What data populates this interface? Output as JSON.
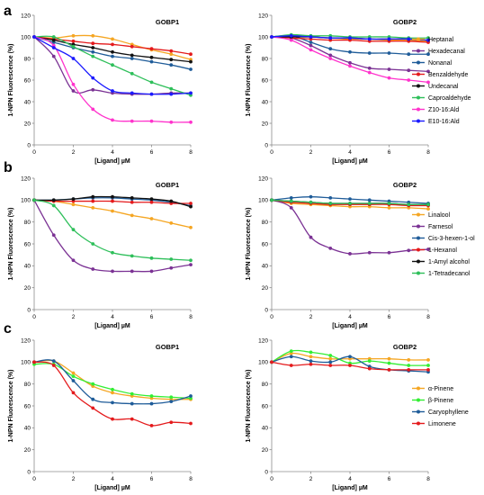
{
  "panel_labels": [
    "a",
    "b",
    "c"
  ],
  "chart_data": [
    {
      "type": "line",
      "panel": "a",
      "title": "GOBP1",
      "xlabel": "[Ligand] µM",
      "ylabel": "1-NPN Fluorescence (%)",
      "xlim": [
        0,
        8
      ],
      "ylim": [
        0,
        120
      ],
      "xticks": [
        0,
        2,
        4,
        6,
        8
      ],
      "yticks": [
        0,
        20,
        40,
        60,
        80,
        100,
        120
      ],
      "grid": false,
      "legend": "none",
      "series": [
        {
          "name": "Heptanal",
          "color": "#f5a623",
          "x": [
            0,
            1,
            2,
            3,
            4,
            5,
            6,
            7,
            8
          ],
          "y": [
            100,
            99,
            101,
            101,
            98,
            93,
            88,
            84,
            79
          ]
        },
        {
          "name": "Hexadecanal",
          "color": "#7b3294",
          "x": [
            0,
            1,
            2,
            3,
            4,
            5,
            6,
            7,
            8
          ],
          "y": [
            100,
            82,
            50,
            51,
            48,
            47,
            47,
            48,
            48
          ]
        },
        {
          "name": "Nonanal",
          "color": "#1f5c99",
          "x": [
            0,
            1,
            2,
            3,
            4,
            5,
            6,
            7,
            8
          ],
          "y": [
            100,
            95,
            90,
            86,
            82,
            80,
            77,
            74,
            70
          ]
        },
        {
          "name": "Benzaldehyde",
          "color": "#e41a1c",
          "x": [
            0,
            1,
            2,
            3,
            4,
            5,
            6,
            7,
            8
          ],
          "y": [
            100,
            98,
            96,
            94,
            93,
            91,
            89,
            87,
            84
          ]
        },
        {
          "name": "Undecanal",
          "color": "#111111",
          "x": [
            0,
            1,
            2,
            3,
            4,
            5,
            6,
            7,
            8
          ],
          "y": [
            100,
            97,
            93,
            90,
            86,
            83,
            81,
            79,
            77
          ]
        },
        {
          "name": "Caproaldehyde",
          "color": "#2ebf5a",
          "x": [
            0,
            1,
            2,
            3,
            4,
            5,
            6,
            7,
            8
          ],
          "y": [
            100,
            100,
            91,
            82,
            74,
            66,
            58,
            52,
            46
          ]
        },
        {
          "name": "Z10-16:Ald",
          "color": "#ff33cc",
          "x": [
            0,
            1,
            2,
            3,
            4,
            5,
            6,
            7,
            8
          ],
          "y": [
            100,
            92,
            56,
            33,
            23,
            22,
            22,
            21,
            21
          ]
        },
        {
          "name": "E10-16:Ald",
          "color": "#1a1aff",
          "x": [
            0,
            1,
            2,
            3,
            4,
            5,
            6,
            7,
            8
          ],
          "y": [
            100,
            90,
            80,
            62,
            50,
            48,
            47,
            47,
            48
          ]
        }
      ]
    },
    {
      "type": "line",
      "panel": "a",
      "title": "GOBP2",
      "xlabel": "[Ligand] µM",
      "ylabel": "1-NPN Fluorescence (%)",
      "xlim": [
        0,
        8
      ],
      "ylim": [
        0,
        120
      ],
      "xticks": [
        0,
        2,
        4,
        6,
        8
      ],
      "yticks": [
        0,
        20,
        40,
        60,
        80,
        100,
        120
      ],
      "grid": false,
      "legend": "right",
      "series": [
        {
          "name": "Heptanal",
          "color": "#f5a623",
          "x": [
            0,
            1,
            2,
            3,
            4,
            5,
            6,
            7,
            8
          ],
          "y": [
            100,
            101,
            100,
            99,
            98,
            98,
            97,
            97,
            96
          ]
        },
        {
          "name": "Hexadecanal",
          "color": "#7b3294",
          "x": [
            0,
            1,
            2,
            3,
            4,
            5,
            6,
            7,
            8
          ],
          "y": [
            100,
            99,
            92,
            83,
            76,
            71,
            70,
            69,
            68
          ]
        },
        {
          "name": "Nonanal",
          "color": "#1f5c99",
          "x": [
            0,
            1,
            2,
            3,
            4,
            5,
            6,
            7,
            8
          ],
          "y": [
            100,
            101,
            95,
            89,
            86,
            85,
            85,
            84,
            84
          ]
        },
        {
          "name": "Benzaldehyde",
          "color": "#e41a1c",
          "x": [
            0,
            1,
            2,
            3,
            4,
            5,
            6,
            7,
            8
          ],
          "y": [
            100,
            99,
            98,
            97,
            97,
            96,
            96,
            96,
            95
          ]
        },
        {
          "name": "Undecanal",
          "color": "#111111",
          "x": [
            0,
            1,
            2,
            3,
            4,
            5,
            6,
            7,
            8
          ],
          "y": [
            100,
            100,
            100,
            99,
            99,
            98,
            98,
            98,
            97
          ]
        },
        {
          "name": "Caproaldehyde",
          "color": "#2ebf5a",
          "x": [
            0,
            1,
            2,
            3,
            4,
            5,
            6,
            7,
            8
          ],
          "y": [
            100,
            102,
            101,
            101,
            100,
            100,
            100,
            99,
            99
          ]
        },
        {
          "name": "Z10-16:Ald",
          "color": "#ff33cc",
          "x": [
            0,
            1,
            2,
            3,
            4,
            5,
            6,
            7,
            8
          ],
          "y": [
            100,
            97,
            88,
            80,
            73,
            67,
            62,
            60,
            58
          ]
        },
        {
          "name": "E10-16:Ald",
          "color": "#1a1aff",
          "x": [
            0,
            1,
            2,
            3,
            4,
            5,
            6,
            7,
            8
          ],
          "y": [
            100,
            101,
            100,
            99,
            99,
            98,
            98,
            98,
            97
          ]
        }
      ]
    },
    {
      "type": "line",
      "panel": "b",
      "title": "GOBP1",
      "xlabel": "[Ligand] µM",
      "ylabel": "1-NPN Fluorescence (%)",
      "xlim": [
        0,
        8
      ],
      "ylim": [
        0,
        120
      ],
      "xticks": [
        0,
        2,
        4,
        6,
        8
      ],
      "yticks": [
        0,
        20,
        40,
        60,
        80,
        100,
        120
      ],
      "grid": false,
      "legend": "none",
      "series": [
        {
          "name": "Linalool",
          "color": "#f5a623",
          "x": [
            0,
            1,
            2,
            3,
            4,
            5,
            6,
            7,
            8
          ],
          "y": [
            100,
            99,
            96,
            93,
            90,
            86,
            83,
            79,
            75
          ]
        },
        {
          "name": "Farnesol",
          "color": "#7b3294",
          "x": [
            0,
            1,
            2,
            3,
            4,
            5,
            6,
            7,
            8
          ],
          "y": [
            100,
            68,
            45,
            37,
            35,
            35,
            35,
            38,
            41
          ]
        },
        {
          "name": "Cis-3-hexen-1-ol",
          "color": "#1f5c99",
          "x": [
            0,
            1,
            2,
            3,
            4,
            5,
            6,
            7,
            8
          ],
          "y": [
            100,
            100,
            101,
            102,
            102,
            101,
            100,
            98,
            95
          ]
        },
        {
          "name": "1-Hexanol",
          "color": "#e41a1c",
          "x": [
            0,
            1,
            2,
            3,
            4,
            5,
            6,
            7,
            8
          ],
          "y": [
            100,
            99,
            99,
            99,
            99,
            98,
            98,
            97,
            97
          ]
        },
        {
          "name": "1-Amyl alcohol",
          "color": "#111111",
          "x": [
            0,
            1,
            2,
            3,
            4,
            5,
            6,
            7,
            8
          ],
          "y": [
            100,
            100,
            101,
            103,
            103,
            102,
            101,
            99,
            94
          ]
        },
        {
          "name": "1-Tetradecanol",
          "color": "#2ebf5a",
          "x": [
            0,
            1,
            2,
            3,
            4,
            5,
            6,
            7,
            8
          ],
          "y": [
            100,
            95,
            73,
            60,
            52,
            49,
            47,
            46,
            45
          ]
        }
      ]
    },
    {
      "type": "line",
      "panel": "b",
      "title": "GOBP2",
      "xlabel": "[Ligand] µM",
      "ylabel": "1-NPN Fluorescence (%)",
      "xlim": [
        0,
        8
      ],
      "ylim": [
        0,
        120
      ],
      "xticks": [
        0,
        2,
        4,
        6,
        8
      ],
      "yticks": [
        0,
        20,
        40,
        60,
        80,
        100,
        120
      ],
      "grid": false,
      "legend": "right",
      "series": [
        {
          "name": "Linalool",
          "color": "#f5a623",
          "x": [
            0,
            1,
            2,
            3,
            4,
            5,
            6,
            7,
            8
          ],
          "y": [
            100,
            97,
            96,
            95,
            94,
            94,
            93,
            93,
            92
          ]
        },
        {
          "name": "Farnesol",
          "color": "#7b3294",
          "x": [
            0,
            1,
            2,
            3,
            4,
            5,
            6,
            7,
            8
          ],
          "y": [
            100,
            93,
            66,
            56,
            51,
            52,
            52,
            54,
            55
          ]
        },
        {
          "name": "Cis-3-hexen-1-ol",
          "color": "#1f5c99",
          "x": [
            0,
            1,
            2,
            3,
            4,
            5,
            6,
            7,
            8
          ],
          "y": [
            100,
            102,
            103,
            102,
            101,
            100,
            99,
            98,
            97
          ]
        },
        {
          "name": "1-Hexanol",
          "color": "#e41a1c",
          "x": [
            0,
            1,
            2,
            3,
            4,
            5,
            6,
            7,
            8
          ],
          "y": [
            100,
            98,
            97,
            96,
            96,
            96,
            96,
            95,
            95
          ]
        },
        {
          "name": "1-Amyl alcohol",
          "color": "#111111",
          "x": [
            0,
            1,
            2,
            3,
            4,
            5,
            6,
            7,
            8
          ],
          "y": [
            100,
            99,
            98,
            97,
            97,
            97,
            97,
            96,
            96
          ]
        },
        {
          "name": "1-Tetradecanol",
          "color": "#2ebf5a",
          "x": [
            0,
            1,
            2,
            3,
            4,
            5,
            6,
            7,
            8
          ],
          "y": [
            100,
            99,
            98,
            97,
            97,
            97,
            97,
            96,
            96
          ]
        }
      ]
    },
    {
      "type": "line",
      "panel": "c",
      "title": "GOBP1",
      "xlabel": "[Ligand] µM",
      "ylabel": "1-NPN Fluorescence (%)",
      "xlim": [
        0,
        8
      ],
      "ylim": [
        0,
        120
      ],
      "xticks": [
        0,
        2,
        4,
        6,
        8
      ],
      "yticks": [
        0,
        20,
        40,
        60,
        80,
        100,
        120
      ],
      "grid": false,
      "legend": "none",
      "series": [
        {
          "name": "α-Pinene",
          "color": "#f5a623",
          "x": [
            0,
            1,
            2,
            3,
            4,
            5,
            6,
            7,
            8
          ],
          "y": [
            100,
            101,
            90,
            78,
            72,
            69,
            67,
            66,
            66
          ]
        },
        {
          "name": "β-Pinene",
          "color": "#33ee33",
          "x": [
            0,
            1,
            2,
            3,
            4,
            5,
            6,
            7,
            8
          ],
          "y": [
            98,
            98,
            87,
            80,
            75,
            71,
            69,
            68,
            67
          ]
        },
        {
          "name": "Caryophyllene",
          "color": "#1f5c99",
          "x": [
            0,
            1,
            2,
            3,
            4,
            5,
            6,
            7,
            8
          ],
          "y": [
            100,
            101,
            83,
            66,
            63,
            62,
            62,
            64,
            69
          ]
        },
        {
          "name": "Limonene",
          "color": "#e41a1c",
          "x": [
            0,
            1,
            2,
            3,
            4,
            5,
            6,
            7,
            8
          ],
          "y": [
            100,
            97,
            72,
            58,
            48,
            48,
            42,
            45,
            44
          ]
        }
      ]
    },
    {
      "type": "line",
      "panel": "c",
      "title": "GOBP2",
      "xlabel": "[Ligand] µM",
      "ylabel": "1-NPN Fluorescence (%)",
      "xlim": [
        0,
        8
      ],
      "ylim": [
        0,
        120
      ],
      "xticks": [
        0,
        2,
        4,
        6,
        8
      ],
      "yticks": [
        0,
        20,
        40,
        60,
        80,
        100,
        120
      ],
      "grid": false,
      "legend": "right",
      "series": [
        {
          "name": "α-Pinene",
          "color": "#f5a623",
          "x": [
            0,
            1,
            2,
            3,
            4,
            5,
            6,
            7,
            8
          ],
          "y": [
            100,
            108,
            105,
            103,
            103,
            103,
            103,
            102,
            102
          ]
        },
        {
          "name": "β-Pinene",
          "color": "#33ee33",
          "x": [
            0,
            1,
            2,
            3,
            4,
            5,
            6,
            7,
            8
          ],
          "y": [
            100,
            110,
            109,
            106,
            99,
            101,
            99,
            97,
            97
          ]
        },
        {
          "name": "Caryophyllene",
          "color": "#1f5c99",
          "x": [
            0,
            1,
            2,
            3,
            4,
            5,
            6,
            7,
            8
          ],
          "y": [
            100,
            105,
            101,
            100,
            105,
            96,
            93,
            92,
            91
          ]
        },
        {
          "name": "Limonene",
          "color": "#e41a1c",
          "x": [
            0,
            1,
            2,
            3,
            4,
            5,
            6,
            7,
            8
          ],
          "y": [
            100,
            97,
            98,
            97,
            97,
            94,
            93,
            93,
            93
          ]
        }
      ]
    }
  ]
}
